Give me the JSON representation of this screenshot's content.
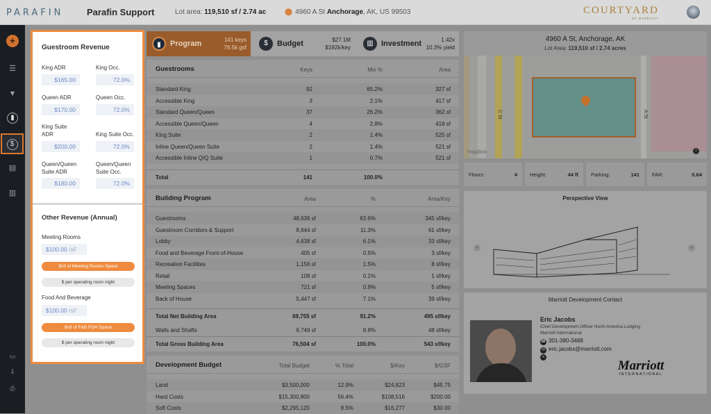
{
  "topbar": {
    "logo": "PARAFIN",
    "app_title": "Parafin Support",
    "lot_label": "Lot area:",
    "lot_value": "119,510 sf / 2.74 ac",
    "addr_street": "4960 A St",
    "addr_city": "Anchorage",
    "addr_rest": ", AK, US 99503",
    "brand": "COURTYARD",
    "brand_sub": "BY MARRIOTT"
  },
  "sidebar": {
    "icons": [
      "plus-icon",
      "list-icon",
      "filter-icon",
      "program-icon",
      "revenue-icon",
      "budget-icon",
      "investment-icon",
      "report-icon",
      "download-icon",
      "print-icon"
    ]
  },
  "revenue_panel": {
    "title": "Guestroom Revenue",
    "fields": [
      {
        "label": "King ADR",
        "value": "$165.00"
      },
      {
        "label": "King Occ.",
        "value": "72.0%"
      },
      {
        "label": "Queen ADR",
        "value": "$170.00"
      },
      {
        "label": "Queen Occ.",
        "value": "72.0%"
      },
      {
        "label": "King Suite ADR",
        "value": "$200.00"
      },
      {
        "label": "King Suite Occ.",
        "value": "72.0%"
      },
      {
        "label": "Queen/Queen Suite ADR",
        "value": "$180.00"
      },
      {
        "label": "Queen/Queen Suite Occ.",
        "value": "72.0%"
      }
    ],
    "other_title": "Other Revenue (Annual)",
    "meeting_label": "Meeting Rooms",
    "meeting_value": "$100.00",
    "meeting_unit": "/sF",
    "meeting_opt1": "$/sf of Meeting Rooms Space",
    "meeting_opt2": "$ per operating room night",
    "fb_label": "Food And Beverage",
    "fb_value": "$100.00",
    "fb_unit": "/sF",
    "fb_opt1": "$/sf of F&B FOH Space",
    "fb_opt2": "$ per operating room night"
  },
  "tabs": [
    {
      "label": "Program",
      "sub1": "141 keys",
      "sub2": "76.5k gsf",
      "icon": "building-icon"
    },
    {
      "label": "Budget",
      "sub1": "$27.1M",
      "sub2": "$192k/key",
      "icon": "money-bag-icon"
    },
    {
      "label": "Investment",
      "sub1": "1.42x",
      "sub2": "10.3% yield",
      "icon": "chart-icon"
    }
  ],
  "guestrooms": {
    "title": "Guestrooms",
    "headers": [
      "Keys",
      "Mix %",
      "Area"
    ],
    "rows": [
      [
        "Standard King",
        "92",
        "65.2%",
        "327 sf"
      ],
      [
        "Accessible King",
        "3",
        "2.1%",
        "417 sf"
      ],
      [
        "Standard Queen/Queen",
        "37",
        "26.2%",
        "362 sf"
      ],
      [
        "Accessible Queen/Queen",
        "4",
        "2.8%",
        "418 sf"
      ],
      [
        "King Suite",
        "2",
        "1.4%",
        "525 sf"
      ],
      [
        "Inline Queen/Queen Suite",
        "2",
        "1.4%",
        "521 sf"
      ],
      [
        "Accessible Inline Q/Q Suite",
        "1",
        "0.7%",
        "521 sf"
      ]
    ],
    "total": [
      "Total",
      "141",
      "100.0%",
      ""
    ]
  },
  "building": {
    "title": "Building Program",
    "headers": [
      "Area",
      "%",
      "Area/Key"
    ],
    "rows": [
      [
        "Guestrooms",
        "48,636 sf",
        "63.6%",
        "345 sf/key"
      ],
      [
        "Guestroom Corridors & Support",
        "8,644 sf",
        "11.3%",
        "61 sf/key"
      ],
      [
        "Lobby",
        "4,638 sf",
        "6.1%",
        "33 sf/key"
      ],
      [
        "Food and Beverage Front-of-House",
        "405 sf",
        "0.5%",
        "3 sf/key"
      ],
      [
        "Recreation Facilities",
        "1,156 sf",
        "1.5%",
        "8 sf/key"
      ],
      [
        "Retail",
        "108 sf",
        "0.1%",
        "1 sf/key"
      ],
      [
        "Meeting Spaces",
        "721 sf",
        "0.9%",
        "5 sf/key"
      ],
      [
        "Back of House",
        "5,447 sf",
        "7.1%",
        "39 sf/key"
      ]
    ],
    "net": [
      "Total Net Building Area",
      "69,755 sf",
      "91.2%",
      "495 sf/key"
    ],
    "walls": [
      "Walls and Shafts",
      "6,749 sf",
      "8.8%",
      "48 sf/key"
    ],
    "gross": [
      "Total Gross Building Area",
      "76,504 sf",
      "100.0%",
      "543 sf/key"
    ]
  },
  "dev_budget": {
    "title": "Development Budget",
    "headers": [
      "Total Budget",
      "% Total",
      "$/Key",
      "$/GSF"
    ],
    "rows": [
      [
        "Land",
        "$3,500,000",
        "12.9%",
        "$24,823",
        "$45.75"
      ],
      [
        "Hard Costs",
        "$15,300,800",
        "56.4%",
        "$108,516",
        "$200.00"
      ],
      [
        "Soft Costs",
        "$2,295,120",
        "8.5%",
        "$16,277",
        "$30.00"
      ]
    ]
  },
  "map": {
    "title": "4960 A St, Anchorage, AK",
    "sub_label": "Lot Area:",
    "sub_value": "119,510 sf / 2.74 acres",
    "street1": "C St",
    "street2": "A St",
    "attribution": "mapbox"
  },
  "stats": [
    {
      "label": "Floors:",
      "value": "4"
    },
    {
      "label": "Height:",
      "value": "44 ft"
    },
    {
      "label": "Parking:",
      "value": "141"
    },
    {
      "label": "FAR:",
      "value": "0.64"
    }
  ],
  "perspective": {
    "title": "Perspective View"
  },
  "contact": {
    "title": "Marriott Development Contact",
    "name": "Eric Jacobs",
    "role": "Chief Development Officer North America Lodging",
    "company": "Marriott International",
    "phone": "301-380-3488",
    "email": "eric.jacobs@marriott.com",
    "logo_main": "Marriott",
    "logo_sub": "INTERNATIONAL"
  }
}
